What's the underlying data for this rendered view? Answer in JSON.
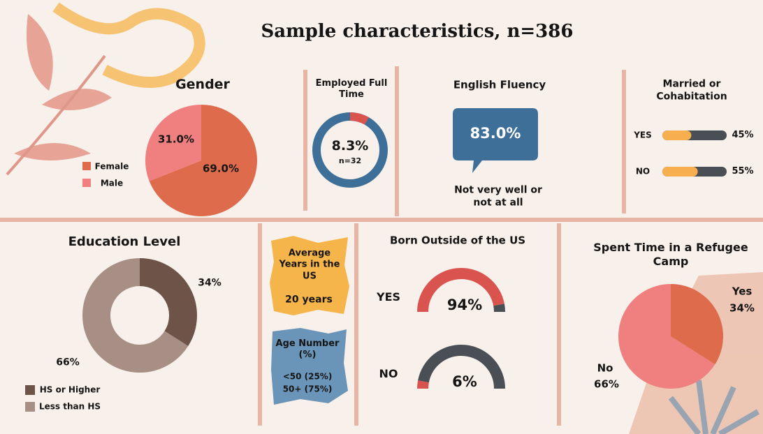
{
  "title": "Sample characteristics, n=386",
  "chart_data": [
    {
      "type": "pie",
      "title": "Gender",
      "categories": [
        "Female",
        "Male"
      ],
      "values": [
        69,
        31
      ],
      "value_labels": [
        "69.0%",
        "31.0%"
      ],
      "colors": [
        "#de6b4c",
        "#f08080"
      ]
    },
    {
      "type": "ring",
      "title": "Employed Full Time",
      "values": [
        8.3
      ],
      "value_labels": [
        "8.3%"
      ],
      "subtitle": "n=32",
      "colors": [
        "#d9534f",
        "#3e6f98"
      ]
    },
    {
      "type": "callout",
      "title": "English Fluency",
      "text": "83.0%",
      "subtitle": "Not very well or not at all",
      "color": "#3e6f98"
    },
    {
      "type": "progress",
      "title": "Married or Cohabitation",
      "categories": [
        "YES",
        "NO"
      ],
      "values": [
        45,
        55
      ],
      "value_labels": [
        "45%",
        "55%"
      ],
      "colors": [
        "#f6ae4e",
        "#4a4f55"
      ]
    },
    {
      "type": "donut",
      "title": "Education Level",
      "categories": [
        "HS or Higher",
        "Less than HS"
      ],
      "values": [
        34,
        66
      ],
      "value_labels": [
        "34%",
        "66%"
      ],
      "colors": [
        "#6e5448",
        "#a88f86"
      ]
    },
    {
      "type": "note",
      "title": "Average Years in the US",
      "lines": [
        "20 years"
      ],
      "color": "#f6b54a"
    },
    {
      "type": "note",
      "title": "Age Number (%)",
      "lines": [
        "<50 (25%)",
        "50+ (75%)"
      ],
      "color": "#6a95b8"
    },
    {
      "type": "gauge",
      "title": "Born Outside of the US",
      "categories": [
        "YES",
        "NO"
      ],
      "values": [
        94,
        6
      ],
      "value_labels": [
        "94%",
        "6%"
      ],
      "colors": [
        "#d9534f",
        "#4a4f55"
      ]
    },
    {
      "type": "pie",
      "title": "Spent Time in a Refugee Camp",
      "categories": [
        "Yes",
        "No"
      ],
      "values": [
        34,
        66
      ],
      "value_labels": [
        "34%",
        "66%"
      ],
      "colors": [
        "#de6b4c",
        "#f08080"
      ]
    }
  ]
}
